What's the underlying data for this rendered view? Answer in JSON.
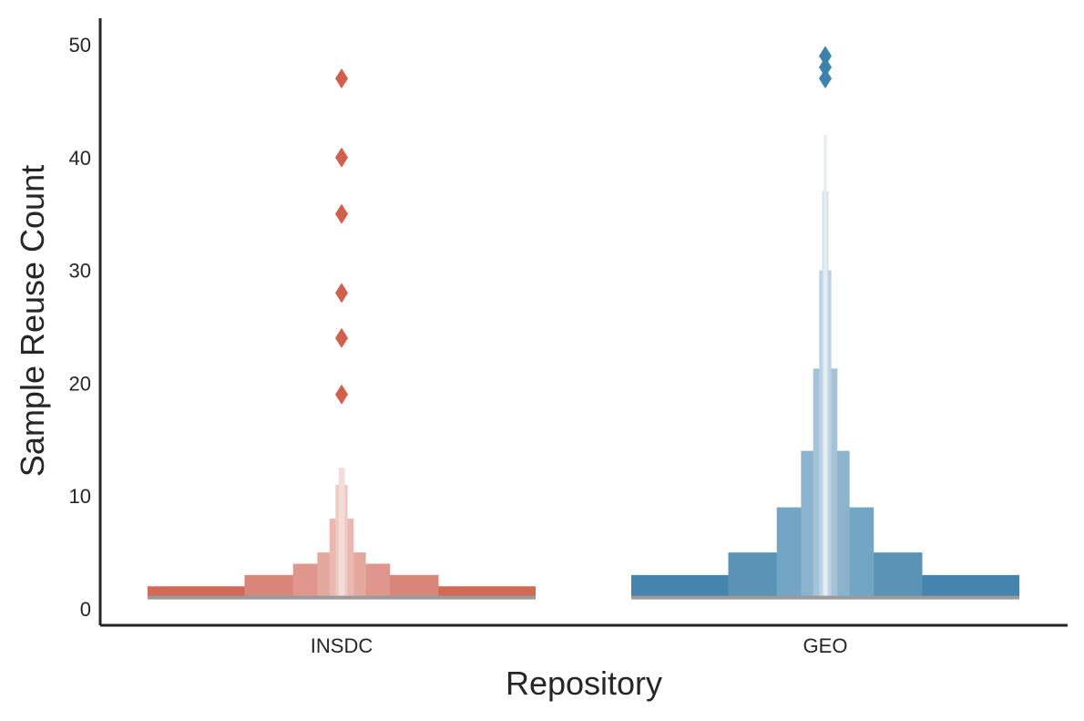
{
  "chart_data": {
    "type": "boxen",
    "title": "",
    "xlabel": "Repository",
    "ylabel": "Sample Reuse Count",
    "ylim": [
      -1.5,
      52.3
    ],
    "yticks": [
      0,
      10,
      20,
      30,
      40,
      50
    ],
    "grid": false,
    "legend": "none",
    "categories": [
      "INSDC",
      "GEO"
    ],
    "groups": [
      {
        "category": "INSDC",
        "color": "#d05f4c",
        "median": 1,
        "boxes": [
          {
            "low": 1,
            "high": 2,
            "width_frac": 1.0,
            "color": "#d26a58"
          },
          {
            "low": 1,
            "high": 3,
            "width_frac": 0.5,
            "color": "#da857a"
          },
          {
            "low": 1,
            "high": 4,
            "width_frac": 0.25,
            "color": "#df978d"
          },
          {
            "low": 1,
            "high": 5,
            "width_frac": 0.125,
            "color": "#e4a89f"
          },
          {
            "low": 1,
            "high": 8,
            "width_frac": 0.0625,
            "color": "#eab8b0"
          },
          {
            "low": 1,
            "high": 11,
            "width_frac": 0.03125,
            "color": "#efc9c3"
          },
          {
            "low": 1,
            "high": 12.5,
            "width_frac": 0.0156,
            "color": "#f4dcd8"
          }
        ],
        "outliers": [
          19,
          24,
          28,
          35,
          40,
          47
        ]
      },
      {
        "category": "GEO",
        "color": "#3d82ab",
        "median": 1,
        "boxes": [
          {
            "low": 1,
            "high": 3,
            "width_frac": 1.0,
            "color": "#4584ae"
          },
          {
            "low": 1,
            "high": 5,
            "width_frac": 0.5,
            "color": "#5a93b6"
          },
          {
            "low": 1,
            "high": 9,
            "width_frac": 0.25,
            "color": "#73a6c4"
          },
          {
            "low": 1,
            "high": 14,
            "width_frac": 0.125,
            "color": "#8bb3cd"
          },
          {
            "low": 1,
            "high": 21.3,
            "width_frac": 0.0625,
            "color": "#a4c3d7"
          },
          {
            "low": 1,
            "high": 30,
            "width_frac": 0.03125,
            "color": "#bcd2e2"
          },
          {
            "low": 1,
            "high": 37,
            "width_frac": 0.0156,
            "color": "#d2e1eb"
          },
          {
            "low": 1,
            "high": 42,
            "width_frac": 0.0078,
            "color": "#e6eef4"
          }
        ],
        "outliers": [
          47,
          48,
          49
        ]
      }
    ]
  }
}
